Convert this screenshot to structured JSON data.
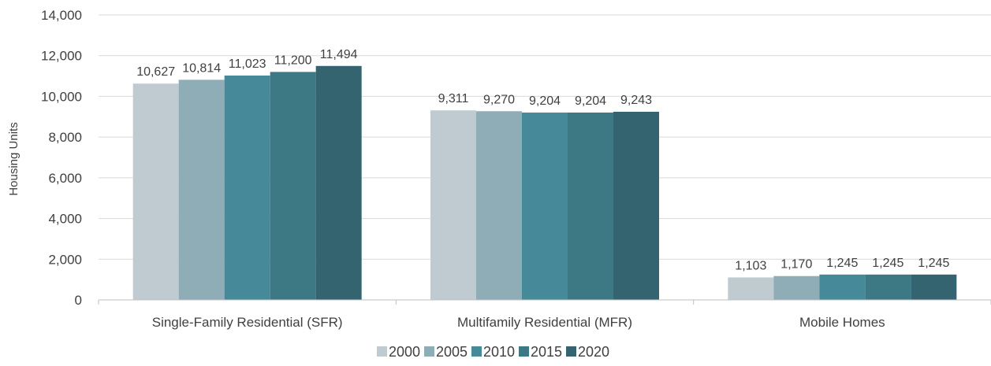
{
  "chart_data": {
    "type": "bar",
    "title": "",
    "xlabel": "",
    "ylabel": "Housing Units",
    "ylim": [
      0,
      14000
    ],
    "yticks": [
      0,
      2000,
      4000,
      6000,
      8000,
      10000,
      12000,
      14000
    ],
    "ytick_labels": [
      "0",
      "2,000",
      "4,000",
      "6,000",
      "8,000",
      "10,000",
      "12,000",
      "14,000"
    ],
    "grid": true,
    "legend_position": "bottom",
    "categories": [
      "Single-Family Residential (SFR)",
      "Multifamily Residential (MFR)",
      "Mobile Homes"
    ],
    "series": [
      {
        "name": "2000",
        "color": "#bfcbd0",
        "values": [
          10627,
          9311,
          1103
        ],
        "labels": [
          "10,627",
          "9,311",
          "1,103"
        ]
      },
      {
        "name": "2005",
        "color": "#8fadb6",
        "values": [
          10814,
          9270,
          1170
        ],
        "labels": [
          "10,814",
          "9,270",
          "1,170"
        ]
      },
      {
        "name": "2010",
        "color": "#468a99",
        "values": [
          11023,
          9204,
          1245
        ],
        "labels": [
          "11,023",
          "9,204",
          "1,245"
        ]
      },
      {
        "name": "2015",
        "color": "#3d7984",
        "values": [
          11200,
          9204,
          1245
        ],
        "labels": [
          "11,200",
          "9,204",
          "1,245"
        ]
      },
      {
        "name": "2020",
        "color": "#33646f",
        "values": [
          11494,
          9243,
          1245
        ],
        "labels": [
          "11,494",
          "9,243",
          "1,245"
        ]
      }
    ]
  }
}
